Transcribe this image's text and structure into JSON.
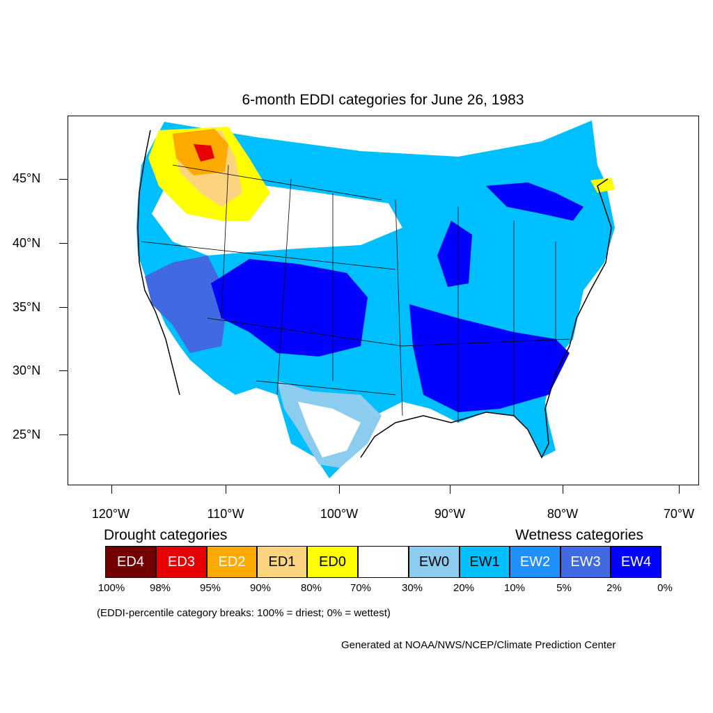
{
  "title": "6-month EDDI categories for June 26, 1983",
  "latitude_labels": [
    "45°N",
    "40°N",
    "35°N",
    "30°N",
    "25°N"
  ],
  "longitude_labels": [
    "120°W",
    "110°W",
    "100°W",
    "90°W",
    "80°W",
    "70°W"
  ],
  "legend": {
    "drought_heading": "Drought categories",
    "wetness_heading": "Wetness categories",
    "categories": [
      {
        "label": "ED4",
        "color": "#730000",
        "text_color": "#ffffff"
      },
      {
        "label": "ED3",
        "color": "#e60000",
        "text_color": "#ffffff"
      },
      {
        "label": "ED2",
        "color": "#ffaa00",
        "text_color": "#ffffff"
      },
      {
        "label": "ED1",
        "color": "#fcd37f",
        "text_color": "#000000"
      },
      {
        "label": "ED0",
        "color": "#ffff00",
        "text_color": "#000000"
      },
      {
        "label": "",
        "color": "#ffffff",
        "text_color": "#000000"
      },
      {
        "label": "EW0",
        "color": "#8ccdef",
        "text_color": "#000000"
      },
      {
        "label": "EW1",
        "color": "#00bfff",
        "text_color": "#000000"
      },
      {
        "label": "EW2",
        "color": "#1e90ff",
        "text_color": "#ffffff"
      },
      {
        "label": "EW3",
        "color": "#4169e1",
        "text_color": "#ffffff"
      },
      {
        "label": "EW4",
        "color": "#0000ff",
        "text_color": "#ffffff"
      }
    ],
    "breaks": [
      "100%",
      "98%",
      "95%",
      "90%",
      "80%",
      "70%",
      "30%",
      "20%",
      "10%",
      "5%",
      "2%",
      "0%"
    ]
  },
  "note": "(EDDI-percentile category breaks: 100% = driest; 0% = wettest)",
  "credit": "Generated at NOAA/NWS/NCEP/Climate Prediction Center"
}
